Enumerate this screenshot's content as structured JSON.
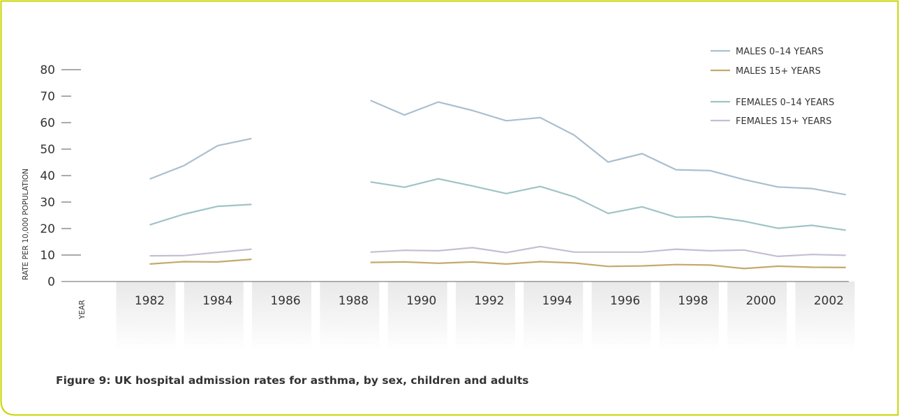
{
  "caption": "Figure 9: UK hospital admission rates for asthma, by sex, children and adults",
  "colors": {
    "frame": "#c8d400",
    "males_0_14": "#a9bfcf",
    "males_15_plus": "#c4a96b",
    "females_0_14": "#9fc3c6",
    "females_15_plus": "#c6bdd3",
    "band": "#e9e9e9"
  },
  "chart_data": {
    "type": "line",
    "ylabel": "RATE PER 10,000 POPULATION",
    "xlabel": "YEAR",
    "ylim": [
      0,
      80
    ],
    "yticks": [
      0,
      10,
      20,
      30,
      40,
      50,
      60,
      70,
      80
    ],
    "ytick_labels": [
      "0",
      "10",
      "20",
      "30",
      "40",
      "50",
      "60",
      "70",
      "80"
    ],
    "xlim": [
      1981,
      2003
    ],
    "x_tick_years": [
      1982,
      1984,
      1986,
      1988,
      1990,
      1992,
      1994,
      1996,
      1998,
      2000,
      2002
    ],
    "x_tick_labels": [
      "1982",
      "1984",
      "1986",
      "1988",
      "1990",
      "1992",
      "1994",
      "1996",
      "1998",
      "2000",
      "2002"
    ],
    "legend_position": "top-right",
    "series": [
      {
        "name": "MALES 0–14 YEARS",
        "key": "males_0_14",
        "segments": [
          {
            "x": [
              1982,
              1983,
              1984,
              1985
            ],
            "y": [
              38.7,
              43.7,
              51.3,
              54
            ]
          },
          {
            "x": [
              1988.5,
              1989.5,
              1990.5,
              1991.5,
              1992.5,
              1993.5,
              1994.5,
              1995.5,
              1996.5,
              1997.5,
              1998.5,
              1999.5,
              2000.5,
              2001.5,
              2002.5
            ],
            "y": [
              68.4,
              62.9,
              67.8,
              64.6,
              60.7,
              61.9,
              55.3,
              45.1,
              48.3,
              42.2,
              41.9,
              38.5,
              35.7,
              35.1,
              32.8
            ]
          }
        ]
      },
      {
        "name": "MALES 15+ YEARS",
        "key": "males_15_plus",
        "segments": [
          {
            "x": [
              1982,
              1983,
              1984,
              1985
            ],
            "y": [
              6.6,
              7.5,
              7.4,
              8.4
            ]
          },
          {
            "x": [
              1988.5,
              1989.5,
              1990.5,
              1991.5,
              1992.5,
              1993.5,
              1994.5,
              1995.5,
              1996.5,
              1997.5,
              1998.5,
              1999.5,
              2000.5,
              2001.5,
              2002.5
            ],
            "y": [
              7.2,
              7.4,
              6.9,
              7.4,
              6.6,
              7.5,
              7,
              5.7,
              5.9,
              6.4,
              6.2,
              4.9,
              5.8,
              5.4,
              5.3
            ]
          }
        ]
      },
      {
        "name": "FEMALES 0–14 YEARS",
        "key": "females_0_14",
        "segments": [
          {
            "x": [
              1982,
              1983,
              1984,
              1985
            ],
            "y": [
              21.4,
              25.4,
              28.4,
              29.1
            ]
          },
          {
            "x": [
              1988.5,
              1989.5,
              1990.5,
              1991.5,
              1992.5,
              1993.5,
              1994.5,
              1995.5,
              1996.5,
              1997.5,
              1998.5,
              1999.5,
              2000.5,
              2001.5,
              2002.5
            ],
            "y": [
              37.6,
              35.6,
              38.8,
              36.1,
              33.2,
              35.9,
              32,
              25.7,
              28.2,
              24.3,
              24.5,
              22.8,
              20.1,
              21.2,
              19.4
            ]
          }
        ]
      },
      {
        "name": "FEMALES 15+ YEARS",
        "key": "females_15_plus",
        "segments": [
          {
            "x": [
              1982,
              1983,
              1984,
              1985
            ],
            "y": [
              9.7,
              9.8,
              11,
              12.2
            ]
          },
          {
            "x": [
              1988.5,
              1989.5,
              1990.5,
              1991.5,
              1992.5,
              1993.5,
              1994.5,
              1995.5,
              1996.5,
              1997.5,
              1998.5,
              1999.5,
              2000.5,
              2001.5,
              2002.5
            ],
            "y": [
              11.1,
              11.8,
              11.6,
              12.8,
              10.9,
              13.2,
              11.1,
              11.1,
              11.1,
              12.2,
              11.6,
              11.9,
              9.5,
              10.2,
              9.9
            ]
          }
        ]
      }
    ]
  }
}
